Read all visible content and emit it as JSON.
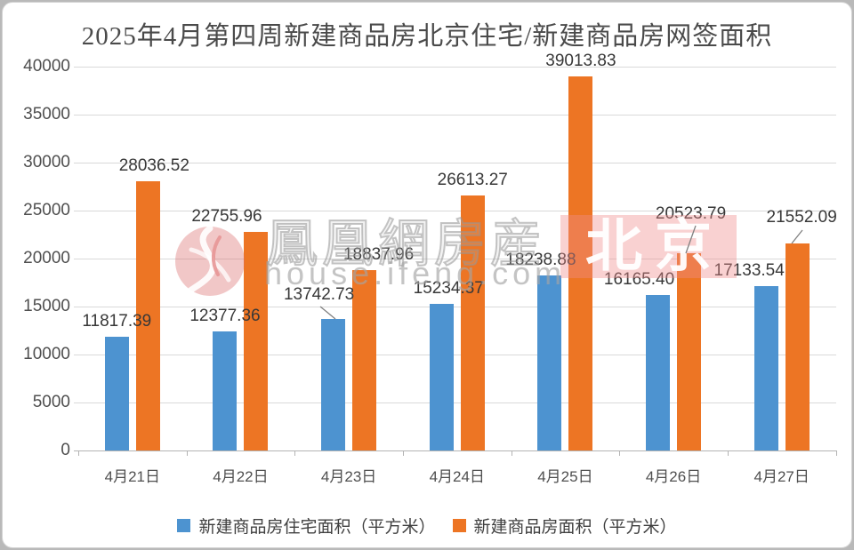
{
  "page": {
    "title": "2025年4月第四周新建商品房北京住宅/新建商品房网签面积"
  },
  "watermark": {
    "logo_icon": "phoenix-swirl-icon",
    "brand_text": "鳳凰網房産",
    "url_text": "house.ifeng.com",
    "city_badge_text": "北京",
    "badge_bg": "#ef8c8c",
    "text_color": "#a5a5a5"
  },
  "chart_data": {
    "type": "bar",
    "title": "2025年4月第四周新建商品房北京住宅/新建商品房网签面积",
    "categories": [
      "4月21日",
      "4月22日",
      "4月23日",
      "4月24日",
      "4月25日",
      "4月26日",
      "4月27日"
    ],
    "series": [
      {
        "name": "新建商品房住宅面积（平方米）",
        "color": "#4d93d0",
        "values": [
          11817.39,
          12377.36,
          13742.73,
          15234.37,
          18238.88,
          16165.4,
          17133.54
        ]
      },
      {
        "name": "新建商品房面积（平方米）",
        "color": "#ed7524",
        "values": [
          28036.52,
          22755.96,
          18837.96,
          26613.27,
          39013.83,
          20523.79,
          21552.09
        ]
      }
    ],
    "xlabel": "",
    "ylabel": "",
    "ylim": [
      0,
      40000
    ],
    "ytick_step": 5000,
    "grid": true,
    "legend_position": "bottom",
    "value_labels": true,
    "value_label_decimals": 2
  }
}
